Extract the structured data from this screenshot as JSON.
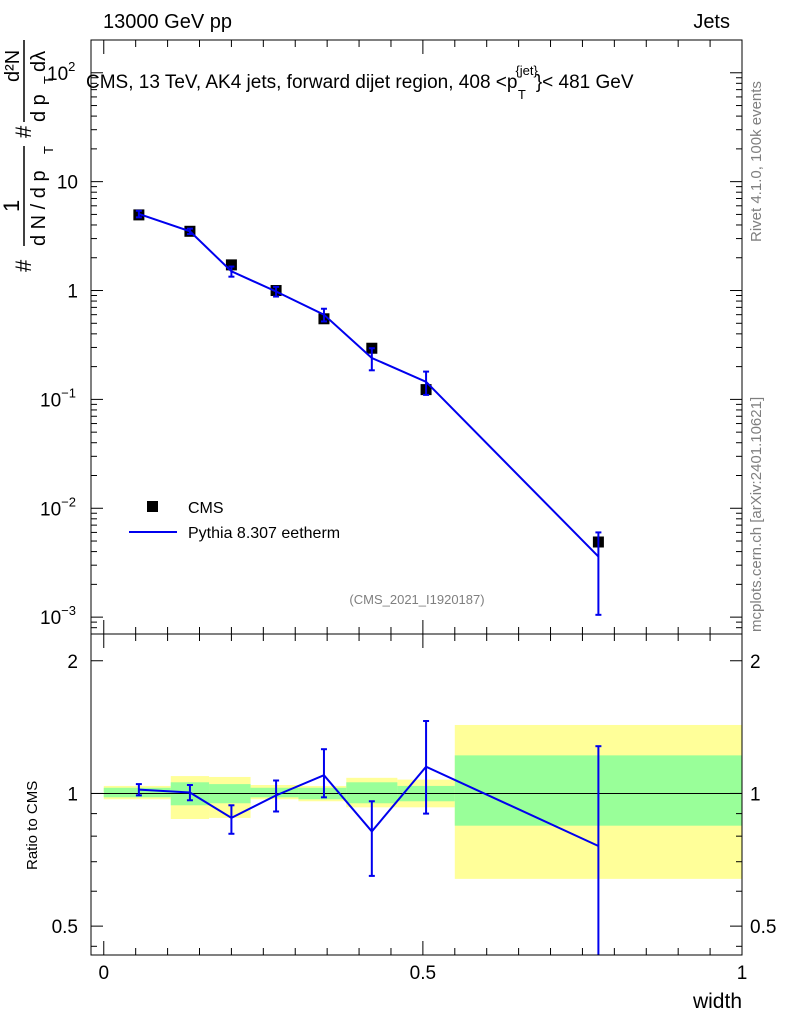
{
  "header": {
    "left": "13000 GeV pp",
    "right": "Jets"
  },
  "side_text": {
    "rivet": "Rivet 4.1.0,  100k events",
    "mcplots": "mcplots.cern.ch [arXiv:2401.10621]"
  },
  "ylabel_main": {
    "prefix": "#",
    "num": "1",
    "den": "d N / d p",
    "den_sub": "T",
    "hash2": "#",
    "d2n": "d²N",
    "den2": "d p",
    "den2_sub": "T",
    "dlambda": "dλ"
  },
  "ratio_ylabel": "Ratio to CMS",
  "watermark": "(CMS_2021_I1920187)",
  "chart_data": [
    {
      "type": "scatter",
      "title": "CMS, 13 TeV, AK4 jets, forward dijet region, 408 <p_T^{jet}< 481 GeV",
      "title_parts": {
        "main": "CMS, 13 TeV, AK4 jets, forward dijet region, 408 <p",
        "sup": "{jet}",
        "sub": "T",
        "tail": "}< 481 GeV"
      },
      "yscale": "log",
      "ylim": [
        0.0007,
        200
      ],
      "xlim": [
        -0.02,
        1.0
      ],
      "ytick_labels": [
        {
          "value": 0.001,
          "base": "10",
          "exp": "−3"
        },
        {
          "value": 0.01,
          "base": "10",
          "exp": "−2"
        },
        {
          "value": 0.1,
          "base": "10",
          "exp": "−1"
        },
        {
          "value": 1,
          "base": "1",
          "exp": ""
        },
        {
          "value": 10,
          "base": "10",
          "exp": ""
        },
        {
          "value": 100,
          "base": "10",
          "exp": "2"
        }
      ],
      "legend": [
        {
          "label": "CMS",
          "marker": "square",
          "color": "#000000"
        },
        {
          "label": "Pythia 8.307 eetherm",
          "marker": "line",
          "color": "#0000ee"
        }
      ],
      "series": [
        {
          "name": "CMS",
          "x": [
            0.055,
            0.135,
            0.2,
            0.27,
            0.345,
            0.42,
            0.505,
            0.775
          ],
          "y": [
            4.95,
            3.5,
            1.72,
            1.0,
            0.55,
            0.295,
            0.123,
            0.0049
          ]
        },
        {
          "name": "Pythia 8.307 eetherm",
          "x": [
            0.055,
            0.135,
            0.2,
            0.27,
            0.345,
            0.42,
            0.505,
            0.775
          ],
          "y": [
            5.05,
            3.5,
            1.5,
            0.98,
            0.6,
            0.24,
            0.145,
            0.0036
          ],
          "yerr_low": [
            0.35,
            0.2,
            0.16,
            0.1,
            0.08,
            0.055,
            0.035,
            0.00255
          ],
          "yerr_high": [
            0.35,
            0.2,
            0.16,
            0.1,
            0.08,
            0.055,
            0.035,
            0.0024
          ]
        }
      ]
    },
    {
      "type": "line",
      "yscale": "log",
      "ylim": [
        0.43,
        2.3
      ],
      "xlim": [
        -0.02,
        1.0
      ],
      "ylabel": "Ratio to CMS",
      "xlabel": "width",
      "xtick_labels": [
        {
          "value": 0,
          "label": "0"
        },
        {
          "value": 0.5,
          "label": "0.5"
        },
        {
          "value": 1,
          "label": "1"
        }
      ],
      "ytick_labels": [
        {
          "value": 0.5,
          "label": "0.5"
        },
        {
          "value": 1,
          "label": "1"
        },
        {
          "value": 2,
          "label": "2"
        }
      ],
      "bands": [
        {
          "x0": 0.0,
          "x1": 0.105,
          "yellow": [
            0.97,
            1.04
          ],
          "green": [
            0.98,
            1.03
          ]
        },
        {
          "x0": 0.105,
          "x1": 0.165,
          "yellow": [
            0.875,
            1.095
          ],
          "green": [
            0.94,
            1.06
          ]
        },
        {
          "x0": 0.165,
          "x1": 0.23,
          "yellow": [
            0.88,
            1.09
          ],
          "green": [
            0.95,
            1.05
          ]
        },
        {
          "x0": 0.23,
          "x1": 0.305,
          "yellow": [
            0.97,
            1.045
          ],
          "green": [
            0.98,
            1.03
          ]
        },
        {
          "x0": 0.305,
          "x1": 0.38,
          "yellow": [
            0.96,
            1.04
          ],
          "green": [
            0.97,
            1.03
          ]
        },
        {
          "x0": 0.38,
          "x1": 0.46,
          "yellow": [
            0.93,
            1.085
          ],
          "green": [
            0.95,
            1.06
          ]
        },
        {
          "x0": 0.46,
          "x1": 0.55,
          "yellow": [
            0.93,
            1.075
          ],
          "green": [
            0.96,
            1.04
          ]
        },
        {
          "x0": 0.55,
          "x1": 1.0,
          "yellow": [
            0.64,
            1.43
          ],
          "green": [
            0.845,
            1.22
          ]
        }
      ],
      "series": [
        {
          "name": "Pythia 8.307 eetherm / CMS",
          "x": [
            0.055,
            0.135,
            0.2,
            0.27,
            0.345,
            0.42,
            0.505,
            0.775
          ],
          "y": [
            1.02,
            1.005,
            0.88,
            0.99,
            1.1,
            0.82,
            1.15,
            0.76
          ],
          "yerr_low": [
            0.03,
            0.04,
            0.07,
            0.08,
            0.12,
            0.17,
            0.25,
            0.5
          ],
          "yerr_high": [
            0.03,
            0.04,
            0.06,
            0.08,
            0.16,
            0.14,
            0.31,
            0.52
          ]
        }
      ]
    }
  ]
}
